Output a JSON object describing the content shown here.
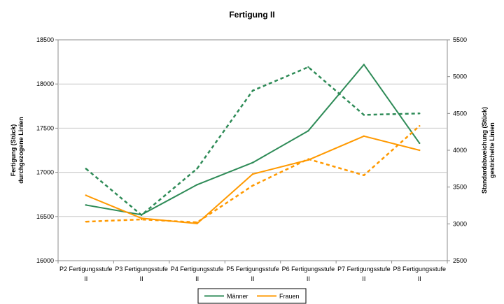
{
  "chart_data": {
    "type": "line",
    "title": "Fertigung II",
    "ylabel_left": [
      "Fertigung (Stück)",
      "durchgezogene Linien"
    ],
    "ylabel_right": [
      "Standardabweichung (Stück)",
      "gestrichelte Linien"
    ],
    "categories": [
      [
        "P2 Fertigungsstufe",
        "II"
      ],
      [
        "P3 Fertigungsstufe",
        "II"
      ],
      [
        "P4 Fertigungsstufe",
        "II"
      ],
      [
        "P5 Fertigungsstufe",
        "II"
      ],
      [
        "P6 Fertigungsstufe",
        "II"
      ],
      [
        "P7 Fertigungsstufe",
        "II"
      ],
      [
        "P8 Fertigungsstufe",
        "II"
      ]
    ],
    "ylim_left": [
      16000,
      18500
    ],
    "yticks_left": [
      "16000",
      "16500",
      "17000",
      "17500",
      "18000",
      "18500"
    ],
    "ylim_right": [
      2500,
      5500
    ],
    "yticks_right": [
      "2500",
      "3000",
      "3500",
      "4000",
      "4500",
      "5000",
      "5500"
    ],
    "series": [
      {
        "name": "Männer",
        "axis": "left",
        "style": "solid",
        "color": "#2e8b57",
        "values": [
          16630,
          16520,
          16860,
          17110,
          17470,
          18220,
          17330
        ]
      },
      {
        "name": "Frauen",
        "axis": "left",
        "style": "solid",
        "color": "#ff9900",
        "values": [
          16740,
          16480,
          16420,
          16980,
          17140,
          17410,
          17250
        ]
      },
      {
        "name": "Männer",
        "axis": "right",
        "style": "dashed",
        "color": "#2e8b57",
        "values": [
          3750,
          3120,
          3750,
          4810,
          5130,
          4480,
          4500
        ]
      },
      {
        "name": "Frauen",
        "axis": "right",
        "style": "dashed",
        "color": "#ff9900",
        "values": [
          3030,
          3060,
          3020,
          3520,
          3880,
          3660,
          4330
        ]
      }
    ],
    "legend": {
      "position": "bottom",
      "entries": [
        "Männer",
        "Frauen"
      ]
    }
  }
}
